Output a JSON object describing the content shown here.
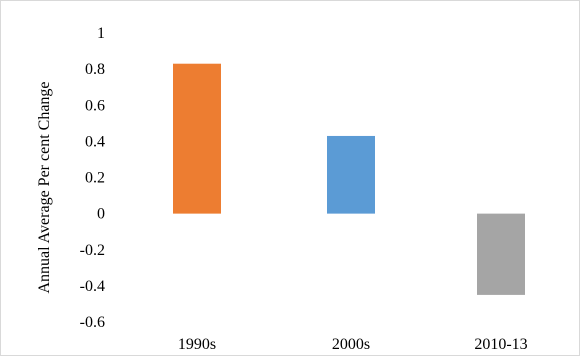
{
  "chart_data": {
    "type": "bar",
    "categories": [
      "1990s",
      "2000s",
      "2010-13"
    ],
    "values": [
      0.83,
      0.43,
      -0.45
    ],
    "colors": [
      "#ed7d31",
      "#5b9bd5",
      "#a5a5a5"
    ],
    "ylabel": "Annual Average Per cent Change",
    "xlabel": "",
    "ylim": [
      -0.6,
      1
    ],
    "yticks": [
      1,
      0.8,
      0.6,
      0.4,
      0.2,
      0,
      -0.2,
      -0.4,
      -0.6
    ],
    "ytick_labels": [
      "1",
      "0.8",
      "0.6",
      "0.4",
      "0.2",
      "0",
      "-0.2",
      "-0.4",
      "-0.6"
    ],
    "grid": false,
    "legend": "none"
  }
}
